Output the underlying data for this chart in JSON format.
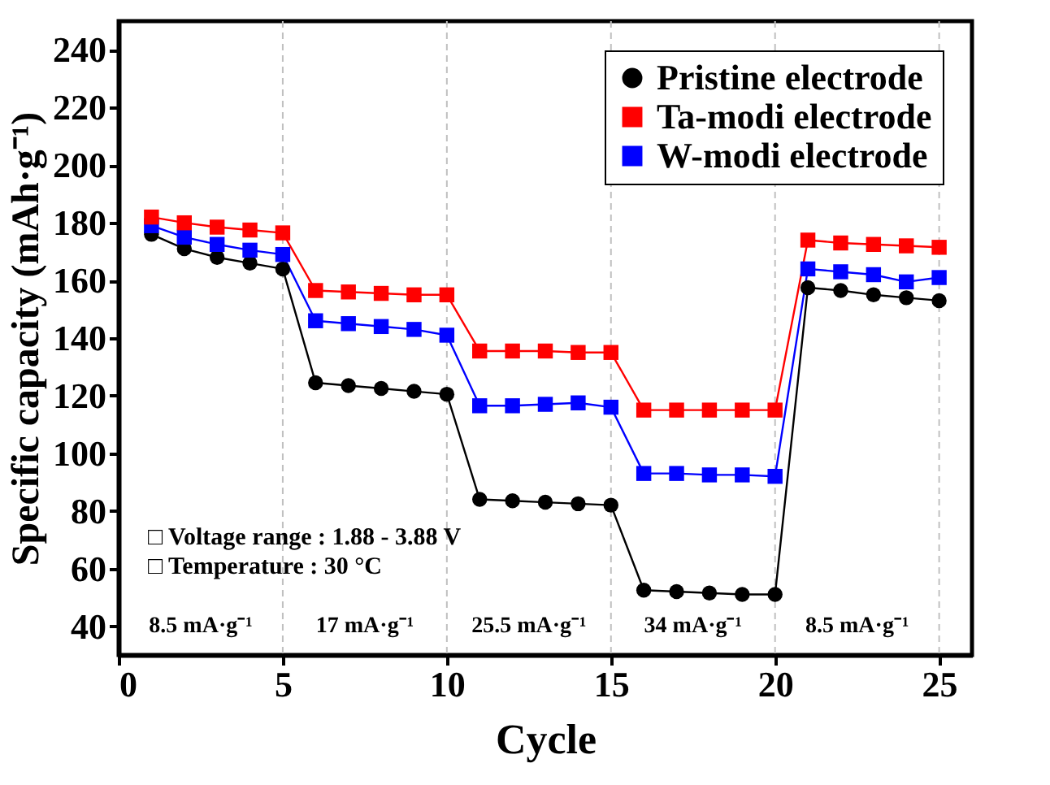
{
  "chart_data": {
    "type": "line",
    "xlabel": "Cycle",
    "ylabel": "Specific capacity (mAh·g⁻¹)",
    "x": [
      1,
      2,
      3,
      4,
      5,
      6,
      7,
      8,
      9,
      10,
      11,
      12,
      13,
      14,
      15,
      16,
      17,
      18,
      19,
      20,
      21,
      22,
      23,
      24,
      25
    ],
    "series": [
      {
        "name": "Pristine electrode",
        "color": "#000000",
        "marker": "circle",
        "values": [
          176,
          171,
          168,
          166,
          164,
          124.5,
          123.5,
          122.5,
          121.5,
          120.5,
          84,
          83.5,
          83,
          82.5,
          82,
          52.5,
          52,
          51.5,
          51,
          51,
          157.5,
          156.5,
          155,
          154,
          153
        ]
      },
      {
        "name": "Ta-modi electrode",
        "color": "#ff0000",
        "marker": "square",
        "values": [
          182,
          180,
          178.5,
          177.5,
          176.5,
          156.5,
          156,
          155.5,
          155,
          155,
          135.5,
          135.5,
          135.5,
          135,
          135,
          115,
          115,
          115,
          115,
          115,
          174,
          173,
          172.5,
          172,
          171.5
        ]
      },
      {
        "name": "W-modi electrode",
        "color": "#0000ff",
        "marker": "square",
        "values": [
          179,
          175,
          172.5,
          170.5,
          169,
          146,
          145,
          144,
          143,
          141,
          116.5,
          116.5,
          117,
          117.5,
          116,
          93,
          93,
          92.5,
          92.5,
          92,
          164,
          163,
          162,
          159.5,
          161
        ]
      }
    ],
    "xlim": [
      0,
      26
    ],
    "xticks": [
      0,
      5,
      10,
      15,
      20,
      25
    ],
    "ylim": [
      30,
      250
    ],
    "yticks": [
      40,
      60,
      80,
      100,
      120,
      140,
      160,
      180,
      200,
      220,
      240
    ],
    "ref_lines": [
      {
        "axis": "x",
        "value": 5,
        "color": "#c0c0c0",
        "line_style": "dashed"
      },
      {
        "axis": "x",
        "value": 10,
        "color": "#c0c0c0",
        "line_style": "dashed"
      },
      {
        "axis": "x",
        "value": 15,
        "color": "#c0c0c0",
        "line_style": "dashed"
      },
      {
        "axis": "x",
        "value": 20,
        "color": "#c0c0c0",
        "line_style": "dashed"
      },
      {
        "axis": "x",
        "value": 25,
        "color": "#c0c0c0",
        "line_style": "dashed"
      }
    ],
    "annotations": [
      "8.5 mA·g⁻¹",
      "17 mA·g⁻¹",
      "25.5 mA·g⁻¹",
      "34 mA·g⁻¹",
      "8.5 mA·g⁻¹",
      "□ Voltage range : 1.88 - 3.88 V",
      "□ Temperature : 30 °C"
    ],
    "legend": "top right",
    "grid": false,
    "line_style": "solid"
  }
}
